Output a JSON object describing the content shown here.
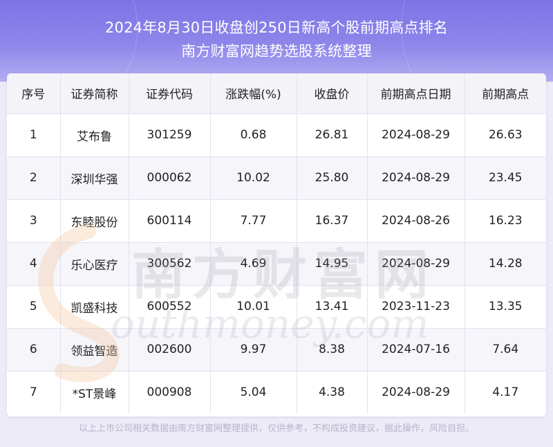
{
  "header": {
    "title_line1": "2024年8月30日收盘创250日新高个股前期高点排名",
    "title_line2": "南方财富网趋势选股系统整理"
  },
  "table": {
    "columns": [
      "序号",
      "证券简称",
      "证券代码",
      "涨跌幅(%)",
      "收盘价",
      "前期高点日期",
      "前期高点"
    ],
    "rows": [
      [
        "1",
        "艾布鲁",
        "301259",
        "0.68",
        "26.81",
        "2024-08-29",
        "26.63"
      ],
      [
        "2",
        "深圳华强",
        "000062",
        "10.02",
        "25.80",
        "2024-08-29",
        "23.45"
      ],
      [
        "3",
        "东睦股份",
        "600114",
        "7.77",
        "16.37",
        "2024-08-26",
        "16.23"
      ],
      [
        "4",
        "乐心医疗",
        "300562",
        "4.69",
        "14.95",
        "2024-08-29",
        "14.28"
      ],
      [
        "5",
        "凯盛科技",
        "600552",
        "10.01",
        "13.41",
        "2023-11-23",
        "13.35"
      ],
      [
        "6",
        "领益智造",
        "002600",
        "9.97",
        "8.38",
        "2024-07-16",
        "7.64"
      ],
      [
        "7",
        "*ST景峰",
        "000908",
        "5.04",
        "4.38",
        "2024-08-29",
        "4.17"
      ]
    ]
  },
  "watermark": {
    "cn": "南方财富网",
    "en": "outhmoney.com"
  },
  "footer": {
    "disclaimer": "以上上市公司相关数据由南方财富网整理提供，仅供参考，不构成投资建议，据此操作，风险自担。"
  }
}
